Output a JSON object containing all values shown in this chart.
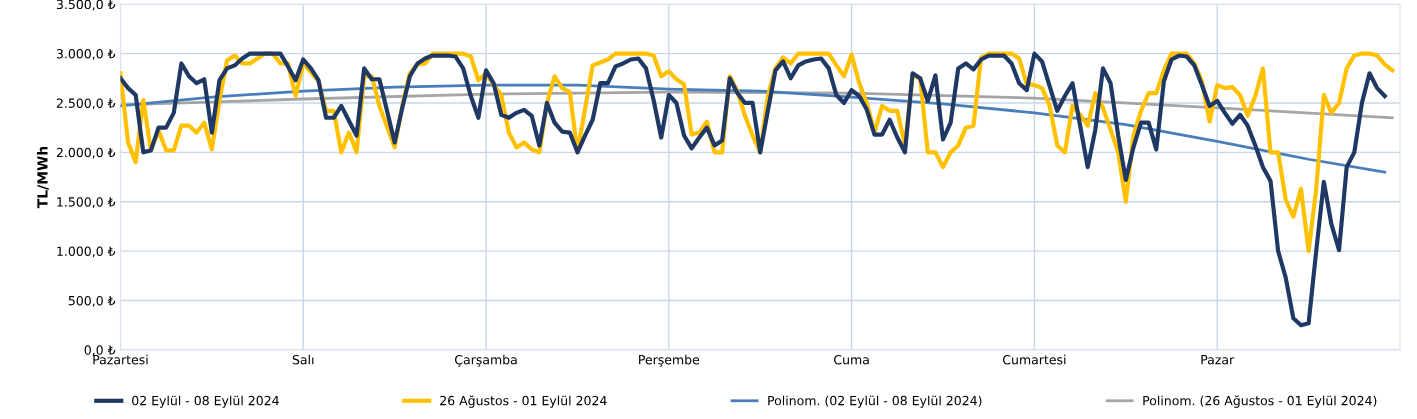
{
  "chart_data": {
    "type": "line",
    "ylabel": "TL/MWh",
    "categories": [
      "Pazartesi",
      null,
      null,
      null,
      null,
      null,
      null,
      null,
      null,
      null,
      null,
      null,
      null,
      null,
      null,
      null,
      null,
      null,
      null,
      null,
      null,
      null,
      null,
      null,
      "Salı",
      null,
      null,
      null,
      null,
      null,
      null,
      null,
      null,
      null,
      null,
      null,
      null,
      null,
      null,
      null,
      null,
      null,
      null,
      null,
      null,
      null,
      null,
      null,
      "Çarşamba",
      null,
      null,
      null,
      null,
      null,
      null,
      null,
      null,
      null,
      null,
      null,
      null,
      null,
      null,
      null,
      null,
      null,
      null,
      null,
      null,
      null,
      null,
      null,
      "Perşembe",
      null,
      null,
      null,
      null,
      null,
      null,
      null,
      null,
      null,
      null,
      null,
      null,
      null,
      null,
      null,
      null,
      null,
      null,
      null,
      null,
      null,
      null,
      null,
      "Cuma",
      null,
      null,
      null,
      null,
      null,
      null,
      null,
      null,
      null,
      null,
      null,
      null,
      null,
      null,
      null,
      null,
      null,
      null,
      null,
      null,
      null,
      null,
      null,
      "Cumartesi",
      null,
      null,
      null,
      null,
      null,
      null,
      null,
      null,
      null,
      null,
      null,
      null,
      null,
      null,
      null,
      null,
      null,
      null,
      null,
      null,
      null,
      null,
      null,
      "Pazar",
      null,
      null,
      null,
      null,
      null,
      null,
      null,
      null,
      null,
      null,
      null,
      null,
      null,
      null,
      null,
      null,
      null,
      null,
      null,
      null,
      null,
      null,
      null
    ],
    "ylim": [
      0,
      3500
    ],
    "yticks": [
      {
        "value": 0,
        "label": "0,0 ₺"
      },
      {
        "value": 500,
        "label": "500,0 ₺"
      },
      {
        "value": 1000,
        "label": "1.000,0 ₺"
      },
      {
        "value": 1500,
        "label": "1.500,0 ₺"
      },
      {
        "value": 2000,
        "label": "2.000,0 ₺"
      },
      {
        "value": 2500,
        "label": "2.500,0 ₺"
      },
      {
        "value": 3000,
        "label": "3.000,0 ₺"
      },
      {
        "value": 3500,
        "label": "3.500,0 ₺"
      }
    ],
    "grid": true,
    "legend": "bottom",
    "marker": "none",
    "line_style": "solid",
    "series": [
      {
        "name": "02 Eylül - 08 Eylül 2024",
        "color": "#1f3864",
        "values": [
          2750,
          2650,
          2580,
          2000,
          2020,
          2250,
          2250,
          2400,
          2900,
          2770,
          2700,
          2740,
          2200,
          2730,
          2850,
          2880,
          2950,
          3000,
          3000,
          3000,
          3000,
          3000,
          2870,
          2730,
          2940,
          2850,
          2730,
          2350,
          2350,
          2470,
          2320,
          2170,
          2850,
          2740,
          2740,
          2420,
          2100,
          2450,
          2770,
          2900,
          2950,
          2980,
          2980,
          2980,
          2970,
          2850,
          2570,
          2350,
          2830,
          2700,
          2380,
          2350,
          2400,
          2430,
          2370,
          2070,
          2500,
          2300,
          2210,
          2200,
          2000,
          2170,
          2330,
          2700,
          2700,
          2870,
          2900,
          2940,
          2950,
          2850,
          2530,
          2150,
          2580,
          2500,
          2170,
          2040,
          2150,
          2250,
          2070,
          2120,
          2750,
          2600,
          2500,
          2500,
          2000,
          2420,
          2830,
          2920,
          2750,
          2880,
          2920,
          2940,
          2950,
          2850,
          2580,
          2500,
          2630,
          2570,
          2430,
          2180,
          2180,
          2330,
          2150,
          2000,
          2800,
          2750,
          2520,
          2780,
          2130,
          2300,
          2850,
          2900,
          2840,
          2940,
          2980,
          2980,
          2980,
          2900,
          2700,
          2630,
          3000,
          2920,
          2670,
          2420,
          2570,
          2700,
          2270,
          1850,
          2230,
          2850,
          2700,
          2170,
          1720,
          2050,
          2300,
          2300,
          2030,
          2720,
          2940,
          2980,
          2970,
          2880,
          2680,
          2470,
          2520,
          2400,
          2290,
          2380,
          2270,
          2070,
          1850,
          1710,
          1000,
          730,
          320,
          250,
          270,
          1000,
          1700,
          1270,
          1010,
          1850,
          2000,
          2500,
          2800,
          2650,
          2570,
          null
        ]
      },
      {
        "name": "26 Ağustos - 01 Eylül 2024",
        "color": "#ffc000",
        "values": [
          2800,
          2100,
          1900,
          2530,
          2020,
          2220,
          2020,
          2020,
          2270,
          2270,
          2200,
          2300,
          2030,
          2530,
          2930,
          2980,
          2900,
          2900,
          2950,
          3000,
          3000,
          2900,
          2900,
          2570,
          2900,
          2810,
          2720,
          2420,
          2420,
          2000,
          2200,
          2000,
          2770,
          2770,
          2470,
          2260,
          2050,
          2470,
          2800,
          2890,
          2900,
          3000,
          3000,
          3000,
          3000,
          3000,
          2970,
          2730,
          2800,
          2680,
          2580,
          2200,
          2050,
          2100,
          2030,
          2000,
          2500,
          2770,
          2650,
          2610,
          2000,
          2440,
          2880,
          2910,
          2940,
          3000,
          3000,
          3000,
          3000,
          3000,
          2980,
          2770,
          2820,
          2740,
          2690,
          2180,
          2200,
          2310,
          2000,
          2000,
          2770,
          2620,
          2370,
          2170,
          2000,
          2570,
          2850,
          2960,
          2900,
          3000,
          3000,
          3000,
          3000,
          3000,
          2880,
          2770,
          2990,
          2700,
          2500,
          2200,
          2470,
          2420,
          2420,
          2070,
          2780,
          2750,
          2000,
          2000,
          1850,
          2000,
          2070,
          2250,
          2270,
          2960,
          3000,
          3000,
          3000,
          3000,
          2950,
          2690,
          2680,
          2650,
          2470,
          2070,
          2000,
          2470,
          2380,
          2270,
          2600,
          2450,
          2230,
          2000,
          1500,
          2170,
          2420,
          2600,
          2600,
          2830,
          3000,
          3000,
          3000,
          2900,
          2720,
          2310,
          2680,
          2650,
          2660,
          2580,
          2370,
          2570,
          2850,
          2000,
          2000,
          1520,
          1350,
          1630,
          1000,
          1630,
          2580,
          2400,
          2500,
          2850,
          2980,
          3000,
          3000,
          2980,
          2890,
          2830
        ]
      },
      {
        "name": "Polinom. (02 Eylül - 08 Eylül 2024)",
        "color": "#4a7ebb",
        "values": [
          2470,
          null,
          null,
          null,
          null,
          null,
          null,
          null,
          null,
          null,
          null,
          null,
          2560,
          null,
          null,
          null,
          null,
          null,
          null,
          null,
          null,
          null,
          null,
          null,
          2620,
          null,
          null,
          null,
          null,
          null,
          null,
          null,
          null,
          null,
          null,
          null,
          2660,
          null,
          null,
          null,
          null,
          null,
          null,
          null,
          null,
          null,
          null,
          null,
          2680,
          null,
          null,
          null,
          null,
          null,
          null,
          null,
          null,
          null,
          null,
          null,
          2680,
          null,
          null,
          null,
          null,
          null,
          null,
          null,
          null,
          null,
          null,
          null,
          2640,
          null,
          null,
          null,
          null,
          null,
          null,
          null,
          null,
          null,
          null,
          null,
          2620,
          null,
          null,
          null,
          null,
          null,
          null,
          null,
          null,
          null,
          null,
          null,
          2560,
          null,
          null,
          null,
          null,
          null,
          null,
          null,
          null,
          null,
          null,
          null,
          2490,
          null,
          null,
          null,
          null,
          null,
          null,
          null,
          null,
          null,
          null,
          null,
          2400,
          null,
          null,
          null,
          null,
          null,
          null,
          null,
          null,
          null,
          null,
          null,
          2280,
          null,
          null,
          null,
          null,
          null,
          null,
          null,
          null,
          null,
          null,
          null,
          2110,
          null,
          null,
          null,
          null,
          null,
          null,
          null,
          null,
          null,
          null,
          null,
          1930,
          null,
          null,
          null,
          null,
          null,
          null,
          null,
          null,
          null,
          1800,
          null
        ]
      },
      {
        "name": "Polinom. (26 Ağustos - 01 Eylül 2024)",
        "color": "#a5a5a5",
        "values": [
          2480,
          null,
          null,
          null,
          null,
          null,
          null,
          null,
          null,
          null,
          null,
          null,
          null,
          null,
          null,
          null,
          null,
          null,
          null,
          null,
          null,
          null,
          null,
          null,
          2540,
          null,
          null,
          null,
          null,
          null,
          null,
          null,
          null,
          null,
          null,
          null,
          null,
          null,
          null,
          null,
          null,
          null,
          null,
          null,
          null,
          null,
          null,
          null,
          2590,
          null,
          null,
          null,
          null,
          null,
          null,
          null,
          null,
          null,
          null,
          null,
          null,
          null,
          null,
          null,
          null,
          null,
          null,
          null,
          null,
          null,
          null,
          null,
          2610,
          null,
          null,
          null,
          null,
          null,
          null,
          null,
          null,
          null,
          null,
          null,
          null,
          null,
          null,
          null,
          null,
          null,
          null,
          null,
          null,
          null,
          null,
          null,
          2600,
          null,
          null,
          null,
          null,
          null,
          null,
          null,
          null,
          null,
          null,
          null,
          null,
          null,
          null,
          null,
          null,
          null,
          null,
          null,
          null,
          null,
          null,
          null,
          2550,
          null,
          null,
          null,
          null,
          null,
          null,
          null,
          null,
          null,
          null,
          null,
          null,
          null,
          null,
          null,
          null,
          null,
          null,
          null,
          null,
          null,
          null,
          null,
          2450,
          null,
          null,
          null,
          null,
          null,
          null,
          null,
          null,
          null,
          null,
          null,
          null,
          null,
          null,
          null,
          null,
          null,
          null,
          null,
          null,
          null,
          null,
          2350
        ]
      }
    ]
  }
}
